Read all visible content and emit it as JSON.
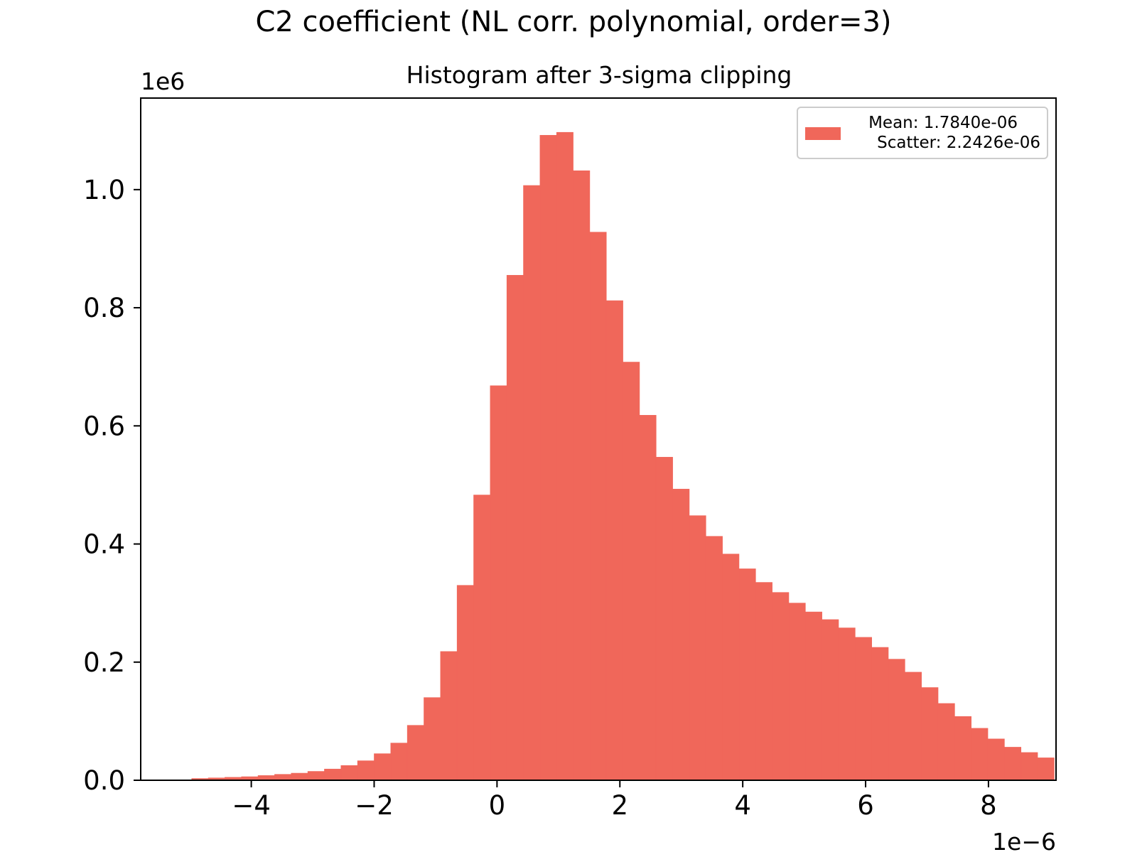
{
  "chart_data": {
    "type": "bar",
    "title": "C2 coefficient (NL corr. polynomial, order=3)",
    "subtitle": "Histogram after 3-sigma clipping",
    "xlabel": "",
    "ylabel": "",
    "x_offset_label": "1e−6",
    "y_offset_label": "1e6",
    "xlim": [
      -5.8,
      9.1
    ],
    "ylim": [
      0,
      1.155
    ],
    "xticks": [
      -4,
      -2,
      0,
      2,
      4,
      6,
      8
    ],
    "xtick_labels": [
      "−4",
      "−2",
      "0",
      "2",
      "4",
      "6",
      "8"
    ],
    "yticks": [
      0.0,
      0.2,
      0.4,
      0.6,
      0.8,
      1.0
    ],
    "ytick_labels": [
      "0.0",
      "0.2",
      "0.4",
      "0.6",
      "0.8",
      "1.0"
    ],
    "bin_start": -4.97,
    "bin_width": 0.27,
    "values": [
      0.003,
      0.004,
      0.005,
      0.006,
      0.008,
      0.01,
      0.012,
      0.015,
      0.019,
      0.025,
      0.033,
      0.045,
      0.063,
      0.093,
      0.14,
      0.218,
      0.33,
      0.483,
      0.668,
      0.855,
      1.007,
      1.092,
      1.097,
      1.032,
      0.928,
      0.812,
      0.708,
      0.618,
      0.547,
      0.493,
      0.448,
      0.413,
      0.383,
      0.358,
      0.335,
      0.318,
      0.3,
      0.285,
      0.272,
      0.258,
      0.242,
      0.225,
      0.205,
      0.183,
      0.157,
      0.13,
      0.108,
      0.088,
      0.07,
      0.056,
      0.047,
      0.038
    ],
    "bar_color": "#f0675a",
    "grid": false,
    "legend": {
      "placement": "top-right",
      "lines": [
        "Mean: 1.7840e-06",
        "Scatter: 2.2426e-06"
      ]
    }
  }
}
